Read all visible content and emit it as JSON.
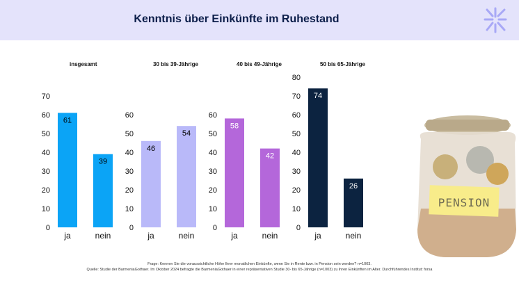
{
  "header": {
    "title": "Kenntnis über Einkünfte im Ruhestand",
    "logo_icon": "starburst-icon"
  },
  "chart_data": [
    {
      "type": "bar",
      "title": "insgesamt",
      "categories": [
        "ja",
        "nein"
      ],
      "values": [
        61,
        39
      ],
      "ylim": [
        0,
        70
      ],
      "yticks": [
        0,
        10,
        20,
        30,
        40,
        50,
        60,
        70
      ],
      "color": "#0ba4f6",
      "label_color": "#000000"
    },
    {
      "type": "bar",
      "title": "30 bis 39-Jährige",
      "categories": [
        "ja",
        "nein"
      ],
      "values": [
        46,
        54
      ],
      "ylim": [
        0,
        60
      ],
      "yticks": [
        0,
        10,
        20,
        30,
        40,
        50,
        60
      ],
      "color": "#b9b9f9",
      "label_color": "#000000"
    },
    {
      "type": "bar",
      "title": "40 bis 49-Jährige",
      "categories": [
        "ja",
        "nein"
      ],
      "values": [
        58,
        42
      ],
      "ylim": [
        0,
        60
      ],
      "yticks": [
        0,
        10,
        20,
        30,
        40,
        50,
        60
      ],
      "color": "#b467da",
      "label_color": "#ffffff"
    },
    {
      "type": "bar",
      "title": "50 bis 65-Jährige",
      "categories": [
        "ja",
        "nein"
      ],
      "values": [
        74,
        26
      ],
      "ylim": [
        0,
        80
      ],
      "yticks": [
        0,
        10,
        20,
        30,
        40,
        50,
        60,
        70,
        80
      ],
      "color": "#0c2340",
      "label_color": "#ffffff"
    }
  ],
  "image": {
    "label": "PENSION"
  },
  "footer": {
    "question": "Frage: Kennen Sie die voraussichtliche Höhe Ihrer monatlichen Einkünfte, wenn Sie in Rente bzw. in Pension sein werden? n=1003.",
    "source": "Quelle: Studie der BarmeniaGothaer. Im Oktober 2024 befragte die BarmeniaGothaer in einer repräsentativen Studie 30- bis 65-Jährige (n=1003) zu ihren Einkünften im Alter. Durchführendes Institut: forsa"
  }
}
